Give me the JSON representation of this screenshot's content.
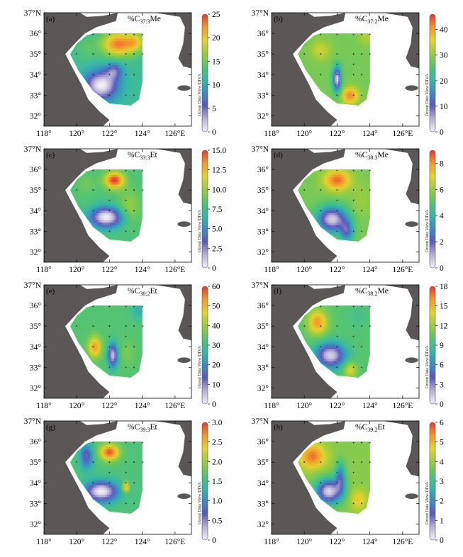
{
  "figure": {
    "lon_ticks": [
      "118°",
      "120°",
      "122°",
      "124°",
      "126°E"
    ],
    "lat_ticks": [
      "32°",
      "33°",
      "34°",
      "35°",
      "36°",
      "37°N"
    ],
    "watermark": "Ocean Data View/DIVA",
    "colorscale": [
      "#f4f0f8",
      "#b8b0d8",
      "#5a5aba",
      "#3b8ec2",
      "#36b8a6",
      "#57c56f",
      "#9acd3e",
      "#e6d22e",
      "#f29a2b",
      "#e63a2e"
    ],
    "colors": {
      "land": "#5b5756",
      "water": "#ffffff",
      "sample_dot": "#222222"
    },
    "sample_stations": [
      [
        121.0,
        35.95
      ],
      [
        122.0,
        35.95
      ],
      [
        123.0,
        35.95
      ],
      [
        123.5,
        35.95
      ],
      [
        124.0,
        35.95
      ],
      [
        120.0,
        35.0
      ],
      [
        121.0,
        35.0
      ],
      [
        122.0,
        35.0
      ],
      [
        123.0,
        35.0
      ],
      [
        123.5,
        35.0
      ],
      [
        124.0,
        35.0
      ],
      [
        121.0,
        34.0
      ],
      [
        122.0,
        34.0
      ],
      [
        123.0,
        34.0
      ],
      [
        123.5,
        34.0
      ],
      [
        122.0,
        33.0
      ],
      [
        123.0,
        33.0
      ],
      [
        123.5,
        33.0
      ],
      [
        122.0,
        34.5
      ],
      [
        123.0,
        34.5
      ]
    ],
    "panels": [
      {
        "label": "(a)",
        "title_prefix": "%C",
        "subscript": "37:3",
        "title_suffix": "Me",
        "colorbar_ticks": [
          "0",
          "5",
          "10",
          "15",
          "20",
          "25"
        ],
        "vmin": 0,
        "vmax": 25,
        "field": {
          "base": 12,
          "blobs": [
            [
              122.5,
              35.5,
              1.0,
              0.6,
              11
            ],
            [
              123.6,
              35.6,
              0.6,
              0.5,
              6
            ],
            [
              121.5,
              33.5,
              1.0,
              0.7,
              -12
            ],
            [
              122.3,
              34.2,
              0.5,
              0.4,
              -6
            ],
            [
              120.6,
              35.3,
              0.6,
              0.6,
              2
            ]
          ]
        }
      },
      {
        "label": "(b)",
        "title_prefix": "%C",
        "subscript": "37:2",
        "title_suffix": "Me",
        "colorbar_ticks": [
          "0",
          "10",
          "20",
          "30",
          "40"
        ],
        "vmin": 0,
        "vmax": 46,
        "field": {
          "base": 28,
          "blobs": [
            [
              122.0,
              33.8,
              0.25,
              0.6,
              -26
            ],
            [
              122.8,
              33.0,
              0.5,
              0.4,
              14
            ],
            [
              121.0,
              35.2,
              0.6,
              0.5,
              6
            ],
            [
              123.8,
              35.8,
              0.5,
              0.4,
              4
            ]
          ]
        }
      },
      {
        "label": "(c)",
        "title_prefix": "%C",
        "subscript": "33:3",
        "title_suffix": "Et",
        "colorbar_ticks": [
          "0",
          "2.5",
          "5.0",
          "7.5",
          "10.0",
          "12.5",
          "15.0"
        ],
        "vmin": 0,
        "vmax": 15,
        "field": {
          "base": 8,
          "blobs": [
            [
              122.3,
              35.5,
              0.6,
              0.4,
              7
            ],
            [
              121.8,
              33.7,
              1.0,
              0.5,
              -8
            ],
            [
              123.2,
              34.2,
              0.7,
              0.8,
              2
            ],
            [
              120.6,
              35.3,
              0.6,
              0.5,
              1
            ]
          ]
        }
      },
      {
        "label": "(d)",
        "title_prefix": "%C",
        "subscript": "38:3",
        "title_suffix": "Me",
        "colorbar_ticks": [
          "0",
          "2",
          "4",
          "6",
          "8"
        ],
        "vmin": 0,
        "vmax": 9,
        "field": {
          "base": 5.5,
          "blobs": [
            [
              122.0,
              35.5,
              0.8,
              0.5,
              3
            ],
            [
              121.7,
              33.6,
              0.9,
              0.6,
              -5
            ],
            [
              122.6,
              33.0,
              0.4,
              0.5,
              -3
            ],
            [
              123.5,
              34.5,
              0.6,
              0.8,
              0.5
            ]
          ]
        }
      },
      {
        "label": "(e)",
        "title_prefix": "%C",
        "subscript": "38:2",
        "title_suffix": "Et",
        "colorbar_ticks": [
          "0",
          "10",
          "20",
          "30",
          "40",
          "50",
          "60"
        ],
        "vmin": 0,
        "vmax": 60,
        "field": {
          "base": 33,
          "blobs": [
            [
              122.2,
              33.6,
              0.3,
              0.6,
              -28
            ],
            [
              121.1,
              34.0,
              0.4,
              0.5,
              20
            ],
            [
              123.8,
              35.8,
              0.5,
              0.5,
              -8
            ],
            [
              123.1,
              33.7,
              0.4,
              0.6,
              4
            ]
          ]
        }
      },
      {
        "label": "(f)",
        "title_prefix": "%C",
        "subscript": "38:2",
        "title_suffix": "Me",
        "colorbar_ticks": [
          "0",
          "3",
          "6",
          "9",
          "12",
          "15",
          "18"
        ],
        "vmin": 0,
        "vmax": 18,
        "field": {
          "base": 10,
          "blobs": [
            [
              120.8,
              35.2,
              0.6,
              0.6,
              6
            ],
            [
              121.6,
              33.6,
              0.9,
              0.6,
              -9
            ],
            [
              122.8,
              32.9,
              0.4,
              0.4,
              4
            ],
            [
              123.3,
              35.5,
              0.6,
              0.6,
              -1
            ]
          ]
        }
      },
      {
        "label": "(g)",
        "title_prefix": "%C",
        "subscript": "39:3",
        "title_suffix": "Et",
        "colorbar_ticks": [
          "0",
          "0.5",
          "1.0",
          "1.5",
          "2.0",
          "2.5",
          "3.0"
        ],
        "vmin": 0,
        "vmax": 3,
        "field": {
          "base": 1.6,
          "blobs": [
            [
              122.0,
              35.5,
              0.6,
              0.4,
              1.3
            ],
            [
              121.5,
              33.6,
              1.0,
              0.5,
              -1.6
            ],
            [
              120.6,
              35.3,
              0.4,
              0.6,
              -1.0
            ],
            [
              123.0,
              33.8,
              0.2,
              0.25,
              1.1
            ]
          ]
        }
      },
      {
        "label": "(h)",
        "title_prefix": "%C",
        "subscript": "39:2",
        "title_suffix": "Et",
        "colorbar_ticks": [
          "0",
          "1",
          "2",
          "3",
          "4",
          "5",
          "6"
        ],
        "vmin": 0,
        "vmax": 6,
        "field": {
          "base": 3.8,
          "blobs": [
            [
              120.5,
              35.3,
              0.8,
              0.6,
              1.8
            ],
            [
              121.5,
              33.6,
              0.8,
              0.6,
              -3.5
            ],
            [
              122.2,
              34.3,
              0.3,
              0.7,
              -2.0
            ],
            [
              123.3,
              33.2,
              0.5,
              0.5,
              1.0
            ]
          ]
        }
      }
    ]
  }
}
